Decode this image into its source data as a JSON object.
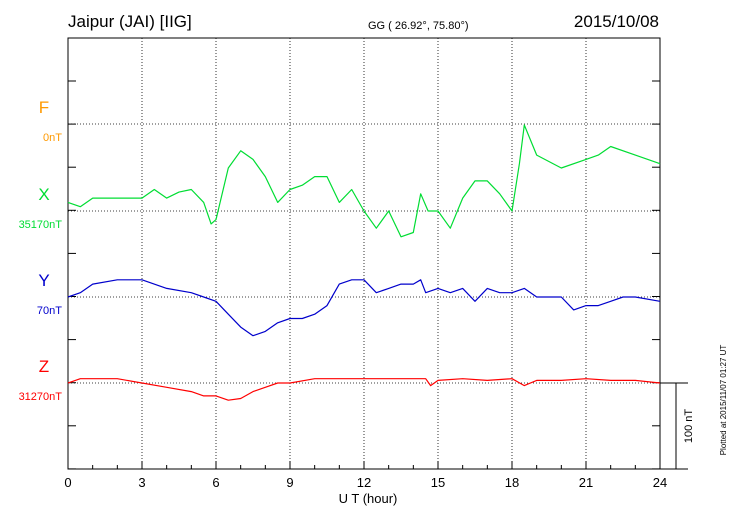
{
  "header": {
    "station": "Jaipur (JAI)  [IIG]",
    "coords": "GG ( 26.92°,  75.80°)",
    "date": "2015/10/08"
  },
  "side_note": "Plotted at 2015/11/07 01:27  UT",
  "scale_bar_label": "100 nT",
  "chart_data": {
    "type": "line",
    "xlabel": "U T (hour)",
    "xlim": [
      0,
      24
    ],
    "x_ticks": [
      0,
      3,
      6,
      9,
      12,
      15,
      18,
      21,
      24
    ],
    "x_tick_labels": [
      "0",
      "3",
      "6",
      "9",
      "12",
      "15",
      "18",
      "21",
      "24"
    ],
    "grid": true,
    "scale_bar_nT": 100,
    "series": [
      {
        "name": "F",
        "baseline_label": "0nT",
        "baseline_nT": 0,
        "color": "#ff9900",
        "x": [],
        "y": []
      },
      {
        "name": "X",
        "baseline_label": "35170nT",
        "baseline_nT": 35170,
        "color": "#00dd33",
        "x": [
          0,
          0.5,
          1,
          2,
          3,
          3.5,
          4,
          4.5,
          5,
          5.5,
          5.8,
          6,
          6.5,
          7,
          7.5,
          8,
          8.5,
          9,
          9.5,
          10,
          10.5,
          11,
          11.5,
          12,
          12.5,
          13,
          13.5,
          14,
          14.3,
          14.6,
          15,
          15.5,
          16,
          16.5,
          17,
          17.5,
          18,
          18.3,
          18.5,
          19,
          20,
          21,
          21.5,
          22,
          23,
          24
        ],
        "y": [
          10,
          5,
          15,
          15,
          15,
          25,
          15,
          22,
          25,
          10,
          -15,
          -10,
          50,
          70,
          60,
          40,
          10,
          25,
          30,
          40,
          40,
          10,
          25,
          0,
          -20,
          0,
          -30,
          -25,
          20,
          0,
          0,
          -20,
          15,
          35,
          35,
          20,
          0,
          55,
          100,
          65,
          50,
          60,
          65,
          75,
          65,
          55
        ]
      },
      {
        "name": "Y",
        "baseline_label": "70nT",
        "baseline_nT": 70,
        "color": "#0000cc",
        "x": [
          0,
          0.5,
          1,
          2,
          2.5,
          3,
          4,
          5,
          5.5,
          6,
          6.5,
          7,
          7.5,
          8,
          8.5,
          9,
          9.5,
          10,
          10.5,
          11,
          11.5,
          12,
          12.5,
          13,
          13.5,
          14,
          14.3,
          14.5,
          15,
          15.5,
          16,
          16.5,
          17,
          17.5,
          18,
          18.5,
          19,
          19.5,
          20,
          20.5,
          21,
          21.5,
          22,
          22.5,
          23,
          24
        ],
        "y": [
          0,
          5,
          15,
          20,
          20,
          20,
          10,
          5,
          0,
          -5,
          -20,
          -35,
          -45,
          -40,
          -30,
          -25,
          -25,
          -20,
          -10,
          15,
          20,
          20,
          5,
          10,
          15,
          15,
          20,
          5,
          10,
          5,
          10,
          -5,
          10,
          5,
          5,
          10,
          0,
          0,
          0,
          -15,
          -10,
          -10,
          -5,
          0,
          0,
          -5
        ]
      },
      {
        "name": "Z",
        "baseline_label": "31270nT",
        "baseline_nT": 31270,
        "color": "#ff0000",
        "x": [
          0,
          0.5,
          1,
          2,
          3,
          4,
          5,
          5.5,
          6,
          6.5,
          7,
          7.5,
          8,
          8.5,
          9,
          10,
          11,
          12,
          13,
          14,
          14.5,
          14.7,
          15,
          16,
          17,
          18,
          18.5,
          19,
          20,
          21,
          22,
          23,
          24
        ],
        "y": [
          0,
          5,
          5,
          5,
          0,
          -5,
          -10,
          -15,
          -15,
          -20,
          -18,
          -10,
          -5,
          0,
          0,
          5,
          5,
          5,
          5,
          5,
          5,
          -3,
          3,
          5,
          3,
          5,
          -3,
          3,
          3,
          5,
          3,
          3,
          0
        ]
      }
    ]
  }
}
